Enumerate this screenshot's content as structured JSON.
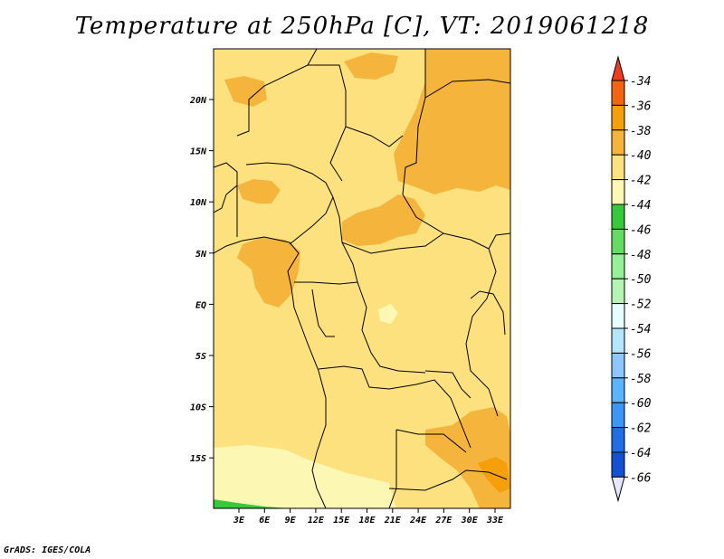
{
  "title": "Temperature at 250hPa [C], VT: 2019061218",
  "credit": "GrADS: IGES/COLA",
  "map": {
    "lat_labels": [
      "20N",
      "15N",
      "10N",
      "5N",
      "EQ",
      "5S",
      "10S",
      "15S"
    ],
    "lon_labels": [
      "3E",
      "6E",
      "9E",
      "12E",
      "15E",
      "18E",
      "21E",
      "24E",
      "27E",
      "30E",
      "33E"
    ]
  },
  "colorbar": {
    "labels": [
      "-34",
      "-36",
      "-38",
      "-40",
      "-42",
      "-44",
      "-46",
      "-48",
      "-50",
      "-52",
      "-54",
      "-56",
      "-58",
      "-60",
      "-62",
      "-64",
      "-66"
    ],
    "colors": [
      "#f03c1e",
      "#f06414",
      "#f5a00a",
      "#f5b43c",
      "#fde17f",
      "#fdf7b4",
      "#37c83c",
      "#64dc64",
      "#96f096",
      "#b4f5b4",
      "#e6ffff",
      "#b4e6ff",
      "#8cc8ff",
      "#5ab4ff",
      "#3c96f5",
      "#1e6ee6",
      "#1450d2",
      "#1e3cb4",
      "#0a0a78",
      "#e6e6ff"
    ],
    "top_color": "#f03c1e",
    "bottom_color": "#e6e6ff"
  }
}
